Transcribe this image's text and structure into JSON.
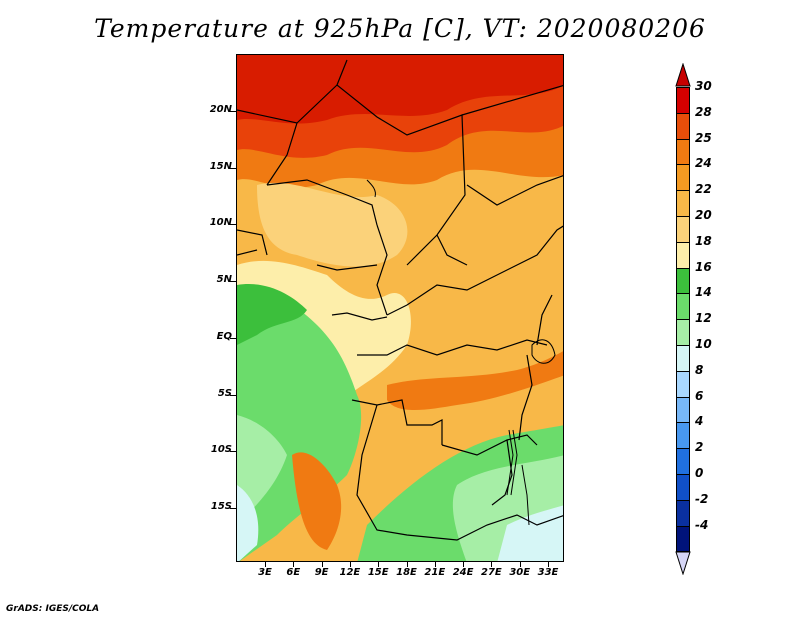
{
  "title": "Temperature at 925hPa [C], VT: 2020080206",
  "credit": "GrADS: IGES/COLA",
  "lat_labels": [
    "20N",
    "15N",
    "10N",
    "5N",
    "EQ",
    "5S",
    "10S",
    "15S"
  ],
  "lon_labels": [
    "3E",
    "6E",
    "9E",
    "12E",
    "15E",
    "18E",
    "21E",
    "24E",
    "27E",
    "30E",
    "33E"
  ],
  "colorbar": {
    "levels": [
      "30",
      "28",
      "25",
      "24",
      "22",
      "20",
      "18",
      "16",
      "14",
      "12",
      "10",
      "8",
      "6",
      "4",
      "2",
      "0",
      "-2",
      "-4"
    ],
    "colors": [
      "#d40000",
      "#e84e0a",
      "#f07a12",
      "#f49a22",
      "#f8b848",
      "#fbd27a",
      "#fdeeaa",
      "#3cbf3c",
      "#6bdc6b",
      "#a6eea6",
      "#d6f6f6",
      "#a9d8ff",
      "#78b8f8",
      "#4898f0",
      "#2070e0",
      "#1050c8",
      "#0a30a0",
      "#00137a"
    ],
    "top_triangle": "#c80000",
    "bottom_triangle": "#d6d6f6"
  },
  "map_colors": {
    "hot": "#d81c00",
    "veryhot": "#e8420a",
    "warm": "#f07a12",
    "warm2": "#f49a22",
    "mild": "#f8b848",
    "mild2": "#fbd27a",
    "cool": "#fdeeaa",
    "green": "#3cbf3c",
    "green2": "#6bdc6b",
    "green3": "#a6eea6",
    "pale": "#d6f6f6"
  }
}
